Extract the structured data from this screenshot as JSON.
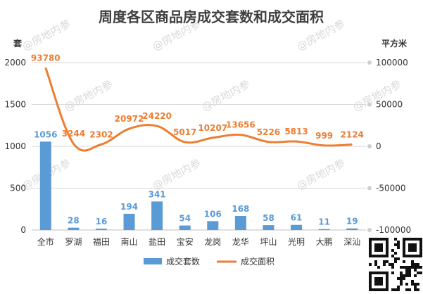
{
  "chart_data": {
    "type": "bar",
    "title": "周度各区商品房成交套数和成交面积",
    "ylabel": "套",
    "y2label": "平方米",
    "ylim": [
      0,
      2000
    ],
    "yticks": [
      0,
      500,
      1000,
      1500,
      2000
    ],
    "y2lim": [
      -100000,
      100000
    ],
    "y2ticks": [
      -100000,
      -50000,
      0,
      50000,
      100000
    ],
    "categories": [
      "全市",
      "罗湖",
      "福田",
      "南山",
      "盐田",
      "宝安",
      "龙岗",
      "龙华",
      "坪山",
      "光明",
      "大鹏",
      "深汕"
    ],
    "series": [
      {
        "name": "成交套数",
        "type": "bar",
        "axis": "left",
        "color": "#5b9bd5",
        "values": [
          1056,
          28,
          16,
          194,
          341,
          54,
          106,
          168,
          58,
          61,
          11,
          19
        ]
      },
      {
        "name": "成交面积",
        "type": "line",
        "axis": "right",
        "color": "#ed7d31",
        "values": [
          93780,
          3244,
          2302,
          20972,
          24220,
          5017,
          10207,
          13656,
          5226,
          5813,
          999,
          2124
        ]
      }
    ],
    "legend_position": "bottom",
    "grid": true
  },
  "watermark": "@房地内参"
}
